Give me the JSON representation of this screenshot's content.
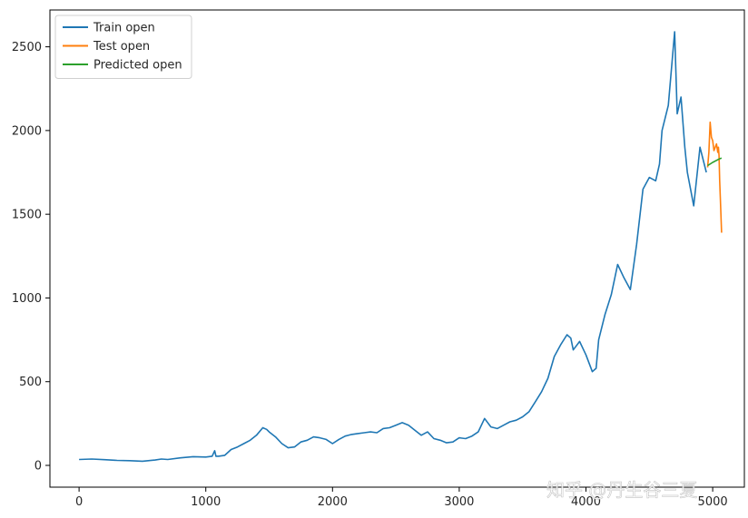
{
  "chart_data": {
    "type": "line",
    "title": "",
    "xlabel": "",
    "ylabel": "",
    "xlim": [
      -230,
      5250
    ],
    "ylim": [
      -130,
      2720
    ],
    "x_ticks": [
      0,
      1000,
      2000,
      3000,
      4000,
      5000
    ],
    "y_ticks": [
      0,
      500,
      1000,
      1500,
      2000,
      2500
    ],
    "grid": false,
    "legend_position": "top-left",
    "series": [
      {
        "name": "Train open",
        "color": "#1f77b4",
        "x": [
          0,
          100,
          200,
          300,
          400,
          500,
          600,
          650,
          700,
          800,
          900,
          1000,
          1050,
          1070,
          1080,
          1100,
          1150,
          1200,
          1250,
          1300,
          1350,
          1400,
          1450,
          1480,
          1500,
          1550,
          1600,
          1650,
          1700,
          1750,
          1800,
          1850,
          1900,
          1950,
          2000,
          2050,
          2100,
          2150,
          2200,
          2250,
          2300,
          2350,
          2400,
          2450,
          2500,
          2550,
          2600,
          2650,
          2700,
          2750,
          2800,
          2850,
          2900,
          2950,
          3000,
          3050,
          3100,
          3150,
          3200,
          3250,
          3300,
          3350,
          3400,
          3450,
          3500,
          3550,
          3600,
          3650,
          3700,
          3750,
          3800,
          3850,
          3880,
          3900,
          3950,
          4000,
          4050,
          4080,
          4100,
          4150,
          4200,
          4250,
          4300,
          4350,
          4400,
          4450,
          4500,
          4550,
          4580,
          4600,
          4650,
          4700,
          4720,
          4750,
          4780,
          4800,
          4850,
          4900,
          4950
        ],
        "y": [
          35,
          38,
          34,
          30,
          28,
          25,
          32,
          38,
          35,
          45,
          52,
          50,
          55,
          88,
          55,
          55,
          60,
          95,
          110,
          130,
          150,
          180,
          225,
          215,
          200,
          170,
          130,
          105,
          110,
          140,
          150,
          170,
          165,
          155,
          130,
          155,
          175,
          185,
          190,
          195,
          200,
          195,
          220,
          225,
          240,
          255,
          240,
          210,
          180,
          200,
          160,
          150,
          135,
          140,
          165,
          160,
          175,
          200,
          280,
          230,
          220,
          240,
          260,
          270,
          290,
          320,
          380,
          440,
          520,
          650,
          720,
          780,
          760,
          690,
          740,
          660,
          560,
          580,
          750,
          900,
          1020,
          1200,
          1120,
          1050,
          1320,
          1650,
          1720,
          1700,
          1800,
          2000,
          2150,
          2590,
          2100,
          2200,
          1900,
          1750,
          1550,
          1900,
          1750
        ]
      },
      {
        "name": "Test open",
        "color": "#ff7f0e",
        "x": [
          4960,
          4970,
          4980,
          4990,
          5000,
          5010,
          5020,
          5030,
          5040,
          5045,
          5050,
          5055,
          5060,
          5070
        ],
        "y": [
          1780,
          1870,
          2050,
          1960,
          1940,
          1880,
          1900,
          1920,
          1870,
          1900,
          1850,
          1700,
          1600,
          1390
        ]
      },
      {
        "name": "Predicted open",
        "color": "#2ca02c",
        "x": [
          4960,
          5000,
          5050,
          5070
        ],
        "y": [
          1790,
          1810,
          1830,
          1835
        ]
      }
    ]
  },
  "watermark": {
    "text": "知乎 @丹生谷三夏"
  }
}
